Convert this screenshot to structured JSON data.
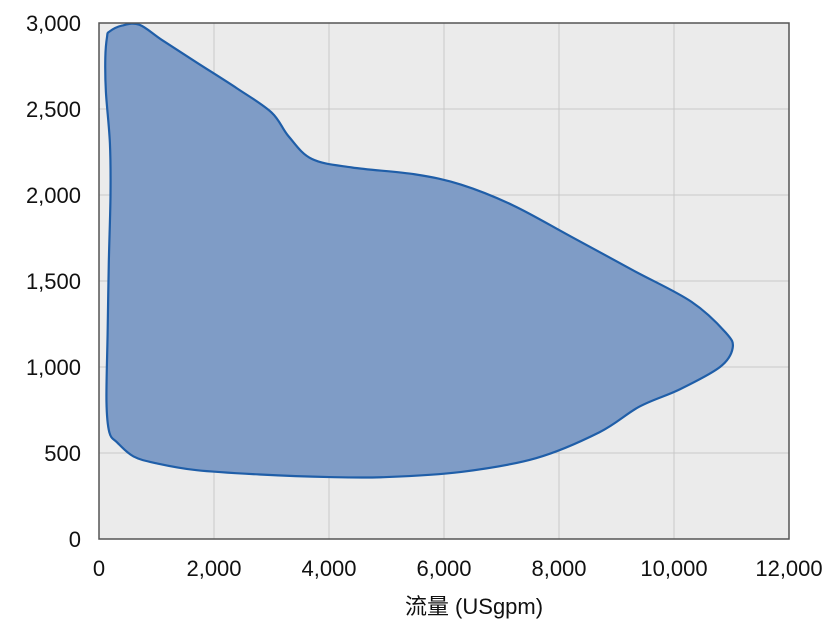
{
  "chart_data": {
    "type": "area",
    "title": "",
    "xlabel": "流量 (USgpm)",
    "ylabel": "",
    "xlim": [
      0,
      12000
    ],
    "ylim": [
      0,
      3000
    ],
    "x_ticks": [
      0,
      2000,
      4000,
      6000,
      8000,
      10000,
      12000
    ],
    "x_tick_labels": [
      "0",
      "2,000",
      "4,000",
      "6,000",
      "8,000",
      "10,000",
      "12,000"
    ],
    "y_ticks": [
      0,
      500,
      1000,
      1500,
      2000,
      2500,
      3000
    ],
    "y_tick_labels": [
      "0",
      "500",
      "1,000",
      "1,500",
      "2,000",
      "2,500",
      "3,000"
    ],
    "grid": true,
    "legend": "none",
    "colors": {
      "plot_background": "#ebebeb",
      "grid": "#c8c8c8",
      "fill": "#7f9cc6",
      "outline": "#1f5ea8",
      "frame": "#555555"
    },
    "series": [
      {
        "values": [
          [
            180,
            2950
          ],
          [
            400,
            2985
          ],
          [
            700,
            2990
          ],
          [
            1100,
            2900
          ],
          [
            1700,
            2770
          ],
          [
            2400,
            2620
          ],
          [
            3000,
            2480
          ],
          [
            3300,
            2340
          ],
          [
            3700,
            2210
          ],
          [
            4400,
            2160
          ],
          [
            5500,
            2120
          ],
          [
            6300,
            2060
          ],
          [
            7200,
            1940
          ],
          [
            8200,
            1760
          ],
          [
            9300,
            1560
          ],
          [
            10300,
            1380
          ],
          [
            10900,
            1200
          ],
          [
            11020,
            1110
          ],
          [
            10800,
            1000
          ],
          [
            10100,
            870
          ],
          [
            9400,
            770
          ],
          [
            8700,
            620
          ],
          [
            7600,
            470
          ],
          [
            6300,
            390
          ],
          [
            5000,
            360
          ],
          [
            4000,
            360
          ],
          [
            2800,
            375
          ],
          [
            1700,
            400
          ],
          [
            1000,
            440
          ],
          [
            600,
            480
          ],
          [
            320,
            560
          ],
          [
            180,
            620
          ],
          [
            130,
            800
          ],
          [
            150,
            1200
          ],
          [
            170,
            1600
          ],
          [
            200,
            2000
          ],
          [
            190,
            2300
          ],
          [
            120,
            2600
          ],
          [
            110,
            2800
          ],
          [
            140,
            2920
          ]
        ]
      }
    ]
  }
}
